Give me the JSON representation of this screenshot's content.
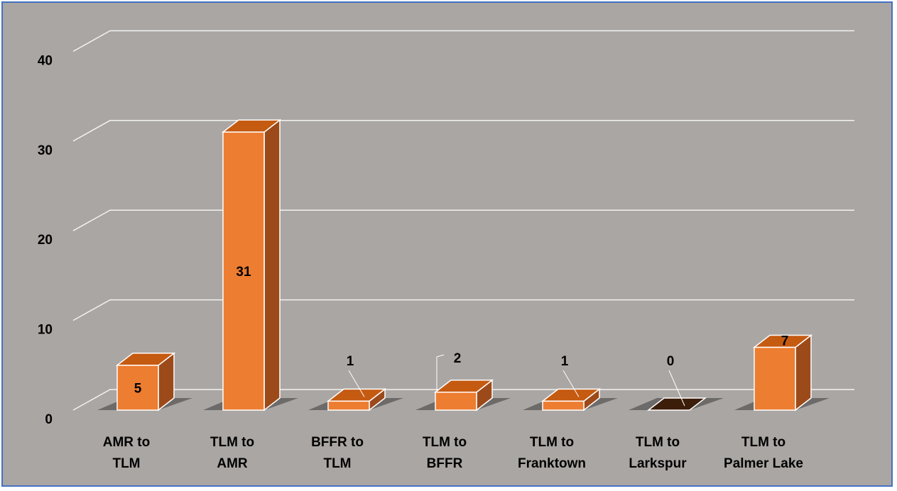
{
  "chart_data": {
    "type": "bar",
    "style": "3d-column",
    "categories": [
      [
        "AMR to",
        "TLM"
      ],
      [
        "TLM to",
        "AMR"
      ],
      [
        "BFFR to",
        "TLM"
      ],
      [
        "TLM to",
        "BFFR"
      ],
      [
        "TLM to",
        "Franktown"
      ],
      [
        "TLM to",
        "Larkspur"
      ],
      [
        "TLM to",
        "Palmer Lake"
      ]
    ],
    "values": [
      5,
      31,
      1,
      2,
      1,
      0,
      7
    ],
    "data_labels": [
      "5",
      "31",
      "1",
      "2",
      "1",
      "0",
      "7"
    ],
    "ylim": [
      0,
      40
    ],
    "yticks": [
      "0",
      "10",
      "20",
      "30",
      "40"
    ],
    "grid": true,
    "legend": "none",
    "title": "",
    "xlabel": "",
    "ylabel": "",
    "colors": {
      "bar_front": "#ed7d31",
      "bar_top": "#c55a11",
      "bar_side": "#9c4a1a",
      "bar_outline": "#ffffff",
      "background": "#aaa6a3",
      "gridline": "#f2f2f2",
      "frame_border": "#4472c4",
      "shadow": "#3a3a3a",
      "zero_bar": "#3b1d0a"
    }
  }
}
